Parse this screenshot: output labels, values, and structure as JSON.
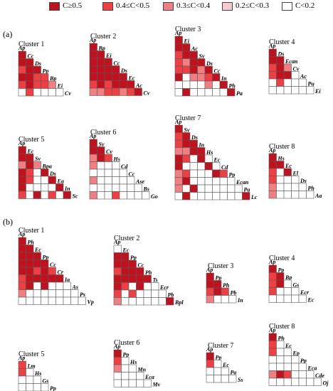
{
  "legend": [
    {
      "label": "C≥0.5",
      "color": "#c1111d"
    },
    {
      "label": "0.4≤C<0.5",
      "color": "#ef3f42"
    },
    {
      "label": "0.3≤C<0.4",
      "color": "#f17f82"
    },
    {
      "label": "0.2≤C<0.3",
      "color": "#f8cacd"
    },
    {
      "label": "C<0.2",
      "color": "#ffffff"
    }
  ],
  "panels": [
    {
      "label": "(a)"
    },
    {
      "label": "(b)"
    }
  ],
  "clusters": [
    {
      "title": "Cluster 1",
      "species": [
        "Ap",
        "Cc",
        "Ds",
        "Pp",
        "Bp",
        "Ei",
        "Cv"
      ],
      "levels": [
        [
          4
        ],
        [
          4,
          4
        ],
        [
          3,
          4,
          4
        ],
        [
          4,
          4,
          3,
          3
        ],
        [
          3,
          4,
          3,
          3,
          2
        ],
        [
          0,
          3,
          0,
          0,
          0,
          0
        ]
      ]
    },
    {
      "title": "Cluster 2",
      "species": [
        "Ap",
        "Bp",
        "Ei",
        "Cc",
        "Ds",
        "Ec",
        "Ac",
        "Cv"
      ],
      "levels": [
        [
          4
        ],
        [
          4,
          4
        ],
        [
          4,
          4,
          4
        ],
        [
          4,
          4,
          4,
          4
        ],
        [
          4,
          4,
          4,
          4,
          4
        ],
        [
          3,
          4,
          3,
          4,
          4,
          4
        ],
        [
          2,
          2,
          3,
          3,
          2,
          3,
          4
        ]
      ]
    },
    {
      "title": "Cluster 3",
      "species": [
        "Ap",
        "Ei",
        "Ac",
        "Sv",
        "Ds",
        "Cc",
        "In",
        "Ph",
        "Pa"
      ],
      "levels": [
        [
          4
        ],
        [
          4,
          4
        ],
        [
          3,
          4,
          4
        ],
        [
          3,
          2,
          4,
          4
        ],
        [
          3,
          3,
          4,
          2,
          4
        ],
        [
          4,
          0,
          2,
          2,
          3,
          4
        ],
        [
          0,
          0,
          0,
          0,
          2,
          0,
          4
        ],
        [
          0,
          4,
          0,
          0,
          0,
          0,
          0,
          4
        ]
      ]
    },
    {
      "title": "Cluster 4",
      "species": [
        "Ap",
        "Ds",
        "Ecan",
        "Cv",
        "Ac",
        "Pu",
        "Ei"
      ],
      "levels": [
        [
          4
        ],
        [
          4,
          4
        ],
        [
          3,
          4,
          2
        ],
        [
          3,
          4,
          4,
          0
        ],
        [
          0,
          3,
          0,
          0,
          0
        ],
        [
          0,
          0,
          0,
          0,
          0,
          0
        ]
      ]
    },
    {
      "title": "Cluster 5",
      "species": [
        "Ap",
        "Ec",
        "Sv",
        "Bpa",
        "Ds",
        "Ea",
        "In",
        "Sc"
      ],
      "levels": [
        [
          4
        ],
        [
          4,
          4
        ],
        [
          2,
          4,
          2
        ],
        [
          4,
          3,
          0,
          4
        ],
        [
          4,
          3,
          0,
          0,
          4
        ],
        [
          4,
          0,
          0,
          0,
          0,
          4
        ],
        [
          3,
          0,
          4,
          0,
          3,
          0,
          4
        ]
      ]
    },
    {
      "title": "Cluster 6",
      "species": [
        "Ap",
        "Sv",
        "Cv",
        "Hs",
        "Cd",
        "Cc",
        "Ase",
        "Bs",
        "Go"
      ],
      "levels": [
        [
          4
        ],
        [
          4,
          4
        ],
        [
          2,
          4,
          3
        ],
        [
          2,
          0,
          0,
          0
        ],
        [
          0,
          0,
          0,
          0,
          0
        ],
        [
          2,
          0,
          0,
          0,
          0,
          0
        ],
        [
          0,
          0,
          0,
          0,
          0,
          0,
          0
        ],
        [
          2,
          0,
          0,
          3,
          0,
          0,
          0,
          0
        ]
      ]
    },
    {
      "title": "Cluster 7",
      "species": [
        "Ap",
        "Sv",
        "Ds",
        "In",
        "Hs",
        "Ec",
        "Cd",
        "Pp",
        "Ecan",
        "Pa",
        "Lc"
      ],
      "levels": [
        [
          4
        ],
        [
          3,
          4
        ],
        [
          3,
          4,
          4
        ],
        [
          2,
          2,
          4,
          4
        ],
        [
          4,
          3,
          0,
          4,
          0
        ],
        [
          4,
          0,
          0,
          0,
          4,
          0
        ],
        [
          2,
          3,
          0,
          0,
          0,
          4,
          3
        ],
        [
          2,
          4,
          0,
          0,
          0,
          0,
          0,
          0
        ],
        [
          2,
          0,
          4,
          0,
          0,
          0,
          0,
          0,
          0
        ],
        [
          0,
          4,
          0,
          0,
          0,
          0,
          0,
          0,
          0,
          4
        ]
      ]
    },
    {
      "title": "Cluster 8",
      "species": [
        "Ap",
        "Hs",
        "Ec",
        "El",
        "Ds",
        "Ph",
        "Aa"
      ],
      "levels": [
        [
          4
        ],
        [
          4,
          4
        ],
        [
          3,
          0,
          4
        ],
        [
          3,
          0,
          0,
          0
        ],
        [
          2,
          0,
          0,
          0,
          0
        ],
        [
          2,
          0,
          0,
          0,
          0,
          0
        ]
      ]
    },
    {
      "title": "Cluster 1",
      "species": [
        "Ap",
        "Ph",
        "Ec",
        "Pp",
        "Cc",
        "Cr",
        "Ia",
        "As",
        "Ps",
        "Vp"
      ],
      "levels": [
        [
          4
        ],
        [
          4,
          4
        ],
        [
          4,
          4,
          4
        ],
        [
          4,
          4,
          4,
          4
        ],
        [
          4,
          4,
          3,
          4,
          3
        ],
        [
          3,
          4,
          4,
          4,
          4,
          4
        ],
        [
          3,
          4,
          0,
          4,
          0,
          0,
          0
        ],
        [
          2,
          0,
          0,
          0,
          0,
          0,
          0,
          0
        ],
        [
          0,
          0,
          0,
          0,
          0,
          0,
          0,
          0,
          0
        ]
      ]
    },
    {
      "title": "Cluster 2",
      "species": [
        "Ap",
        "Ec",
        "Pp",
        "Cc",
        "Ph",
        "Ts",
        "Ecr",
        "Pb",
        "Bpl"
      ],
      "levels": [
        [
          0
        ],
        [
          4,
          4
        ],
        [
          4,
          4,
          4
        ],
        [
          3,
          4,
          4,
          4
        ],
        [
          4,
          4,
          4,
          4,
          4
        ],
        [
          4,
          3,
          0,
          4,
          0,
          0
        ],
        [
          3,
          0,
          3,
          0,
          0,
          0,
          0
        ],
        [
          2,
          0,
          0,
          0,
          0,
          0,
          0,
          4
        ]
      ]
    },
    {
      "title": "Cluster 3",
      "species": [
        "Ap",
        "Pp",
        "Ph",
        "Pb",
        "In"
      ],
      "levels": [
        [
          4
        ],
        [
          4,
          4
        ],
        [
          3,
          4,
          3
        ],
        [
          2,
          0,
          0,
          0
        ]
      ]
    },
    {
      "title": "Cluster 4",
      "species": [
        "Ap",
        "Pp",
        "Bp",
        "Gs",
        "Ecr",
        "Ec"
      ],
      "levels": [
        [
          4
        ],
        [
          3,
          4
        ],
        [
          3,
          4,
          0
        ],
        [
          3,
          0,
          0,
          0
        ],
        [
          0,
          0,
          0,
          0,
          0
        ]
      ]
    },
    {
      "title": "Cluster 5",
      "species": [
        "Ap",
        "Lm",
        "Hs",
        "Gs",
        "Pp"
      ],
      "levels": [
        [
          3
        ],
        [
          3,
          0
        ],
        [
          0,
          0,
          0
        ],
        [
          0,
          0,
          0,
          0
        ]
      ]
    },
    {
      "title": "Cluster 6",
      "species": [
        "Ap",
        "Pp",
        "Hs",
        "Mn",
        "Eca",
        "Mv"
      ],
      "levels": [
        [
          4
        ],
        [
          3,
          0
        ],
        [
          2,
          0,
          0
        ],
        [
          0,
          0,
          0,
          0
        ],
        [
          0,
          0,
          0,
          0,
          0
        ]
      ]
    },
    {
      "title": "Cluster 7",
      "species": [
        "Ap",
        "Pp",
        "Ec",
        "Pa",
        "Ss"
      ],
      "levels": [
        [
          4
        ],
        [
          3,
          0
        ],
        [
          0,
          0,
          0
        ],
        [
          0,
          0,
          0,
          0
        ]
      ]
    },
    {
      "title": "Cluster 8",
      "species": [
        "Ap",
        "Ph",
        "Ec",
        "Ep",
        "Pp",
        "Eca",
        "Cde",
        "Oj"
      ],
      "levels": [
        [
          4
        ],
        [
          3,
          0
        ],
        [
          3,
          0,
          0
        ],
        [
          0,
          0,
          0,
          0
        ],
        [
          0,
          0,
          0,
          0,
          0
        ],
        [
          2,
          4,
          3,
          0,
          0,
          0
        ],
        [
          0,
          0,
          0,
          0,
          0,
          0,
          0
        ]
      ]
    }
  ]
}
